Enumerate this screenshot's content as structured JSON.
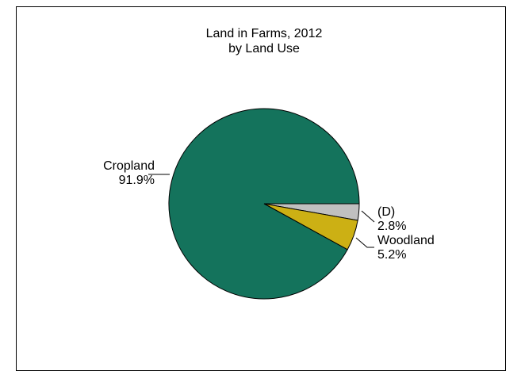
{
  "chart_data": {
    "type": "pie",
    "title": "Land in Farms, 2012",
    "subtitle": "by Land Use",
    "slices": [
      {
        "label": "Cropland",
        "value": 91.9,
        "value_label": "91.9%",
        "color": "#14735C"
      },
      {
        "label": "Woodland",
        "value": 5.2,
        "value_label": "5.2%",
        "color": "#CCB014"
      },
      {
        "label": "(D)",
        "value": 2.8,
        "value_label": "2.8%",
        "color": "#C0C0C0"
      }
    ],
    "start_angle_deg": 0,
    "direction": "clockwise",
    "legend": "none"
  }
}
